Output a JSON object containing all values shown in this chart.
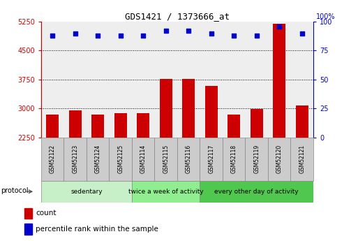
{
  "title": "GDS1421 / 1373666_at",
  "samples": [
    "GSM52122",
    "GSM52123",
    "GSM52124",
    "GSM52125",
    "GSM52114",
    "GSM52115",
    "GSM52116",
    "GSM52117",
    "GSM52118",
    "GSM52119",
    "GSM52120",
    "GSM52121"
  ],
  "counts": [
    2850,
    2950,
    2850,
    2870,
    2870,
    3760,
    3760,
    3580,
    2840,
    2990,
    5200,
    3080
  ],
  "percentile_ranks": [
    88,
    90,
    88,
    88,
    88,
    92,
    92,
    90,
    88,
    88,
    96,
    90
  ],
  "ylim_left": [
    2250,
    5250
  ],
  "ylim_right": [
    0,
    100
  ],
  "yticks_left": [
    2250,
    3000,
    3750,
    4500,
    5250
  ],
  "yticks_right": [
    0,
    25,
    50,
    75,
    100
  ],
  "grid_values": [
    3000,
    3750,
    4500,
    4500
  ],
  "groups": [
    {
      "label": "sedentary",
      "start": 0,
      "end": 4
    },
    {
      "label": "twice a week of activity",
      "start": 4,
      "end": 7
    },
    {
      "label": "every other day of activity",
      "start": 7,
      "end": 12
    }
  ],
  "group_colors": [
    "#c8f0c8",
    "#90ee90",
    "#50c850"
  ],
  "bar_color": "#cc0000",
  "dot_color": "#0000cc",
  "left_axis_color": "#cc0000",
  "right_axis_color": "#0000cc",
  "background_color": "#ffffff",
  "plot_bg": "#eeeeee",
  "protocol_label": "protocol",
  "legend_count_label": "count",
  "legend_pct_label": "percentile rank within the sample",
  "pct_label": "100%"
}
